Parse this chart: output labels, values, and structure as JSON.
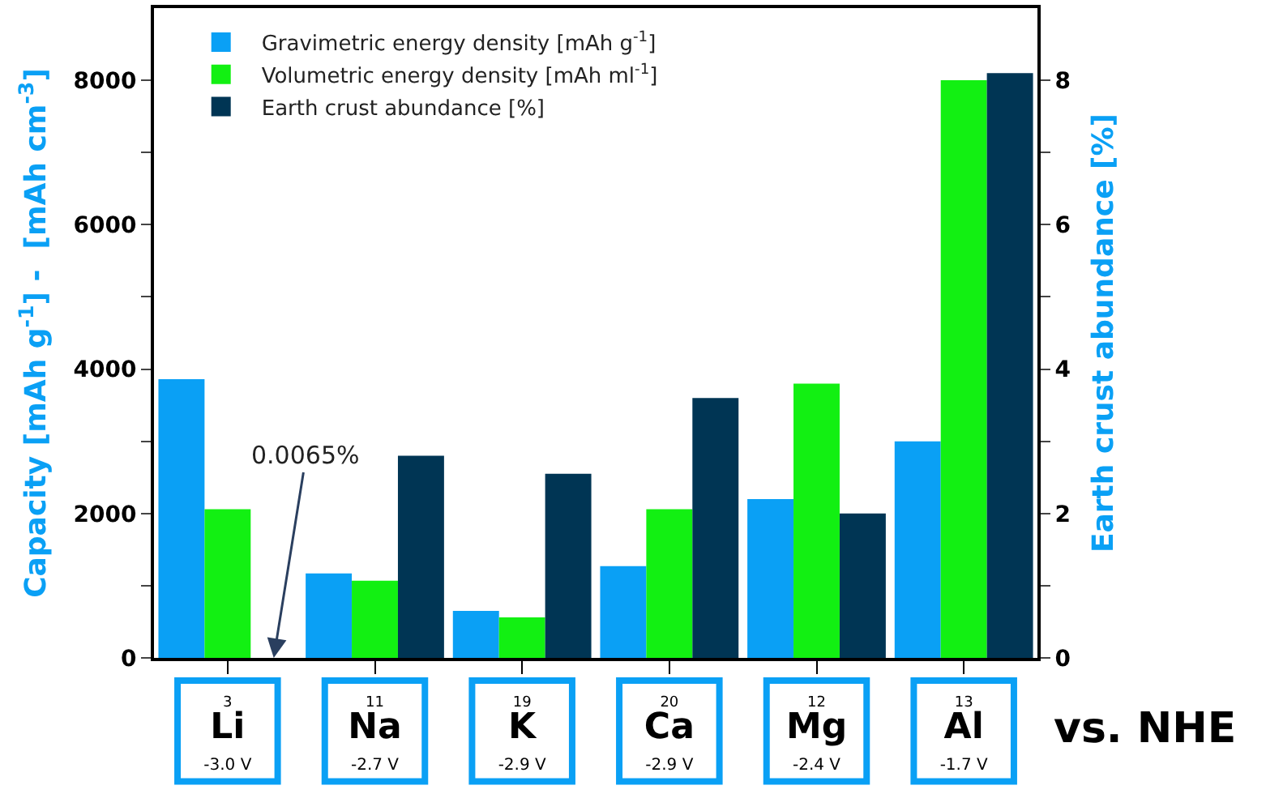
{
  "chart_data": {
    "type": "bar",
    "categories": [
      "3\nLi\n-3.0 V",
      "11\nNa\n-2.7 V",
      "19\nK\n-2.9 V",
      "20\nCa\n-2.9 V",
      "12\nMg\n-2.4 V",
      "13\nAl\n-1.7 V"
    ],
    "series": [
      {
        "name": "Gravimetric energy density [mAh g$^{-1}$]",
        "color": "#0aa0f5",
        "values": [
          3860,
          1170,
          650,
          1270,
          2200,
          3000
        ]
      },
      {
        "name": "Volumetric energy density [mAh ml$^{-1}$]",
        "color": "#12f012",
        "values": [
          2060,
          1070,
          560,
          2060,
          3800,
          8000
        ]
      },
      {
        "name": "Earth crust abundance [%]",
        "color": "#003554",
        "axis": "y2",
        "values": [
          null,
          2.8,
          2.55,
          3.6,
          2.0,
          8.1
        ]
      }
    ],
    "ylabel": "Capacity [mAh g$^{-1}$] -  [mAh cm$^{-3}$]",
    "y2label": "Earth crust abundance [%]",
    "ylim": [
      0,
      9000
    ],
    "yticks": [
      0,
      {
        "value": 1000,
        "label": null
      },
      2000,
      {
        "value": 3000,
        "label": null
      },
      4000,
      {
        "value": 5000,
        "label": null
      },
      6000,
      {
        "value": 7000,
        "label": null
      },
      8000
    ],
    "y2lim": [
      0,
      9
    ],
    "y2ticks": [
      0,
      {
        "value": 1,
        "label": null
      },
      2,
      {
        "value": 3,
        "label": null
      },
      4,
      {
        "value": 5,
        "label": null
      },
      6,
      {
        "value": 7,
        "label": null
      },
      8
    ],
    "annotations": [
      "0.0065%",
      "vs. NHE"
    ],
    "legend": "top left"
  }
}
